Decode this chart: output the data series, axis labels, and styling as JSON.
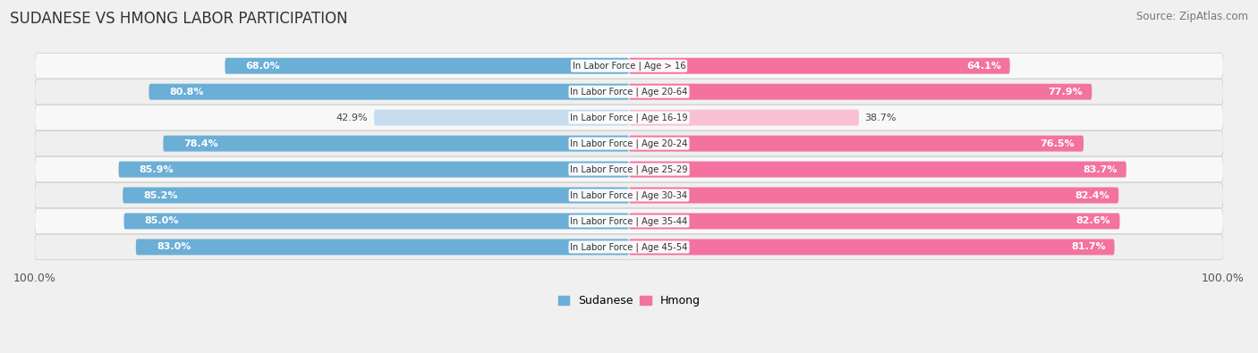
{
  "title": "SUDANESE VS HMONG LABOR PARTICIPATION",
  "source": "Source: ZipAtlas.com",
  "categories": [
    "In Labor Force | Age > 16",
    "In Labor Force | Age 20-64",
    "In Labor Force | Age 16-19",
    "In Labor Force | Age 20-24",
    "In Labor Force | Age 25-29",
    "In Labor Force | Age 30-34",
    "In Labor Force | Age 35-44",
    "In Labor Force | Age 45-54"
  ],
  "sudanese": [
    68.0,
    80.8,
    42.9,
    78.4,
    85.9,
    85.2,
    85.0,
    83.0
  ],
  "hmong": [
    64.1,
    77.9,
    38.7,
    76.5,
    83.7,
    82.4,
    82.6,
    81.7
  ],
  "sudanese_color": "#6BAED6",
  "sudanese_color_light": "#C6DCEF",
  "hmong_color": "#F472A0",
  "hmong_color_light": "#F9C0D4",
  "background_color": "#f0f0f0",
  "row_bg": "#f8f8f8",
  "row_bg_alt": "#efefef",
  "max_val": 100.0,
  "legend_sudanese": "Sudanese",
  "legend_hmong": "Hmong",
  "center_label_bg": "white"
}
